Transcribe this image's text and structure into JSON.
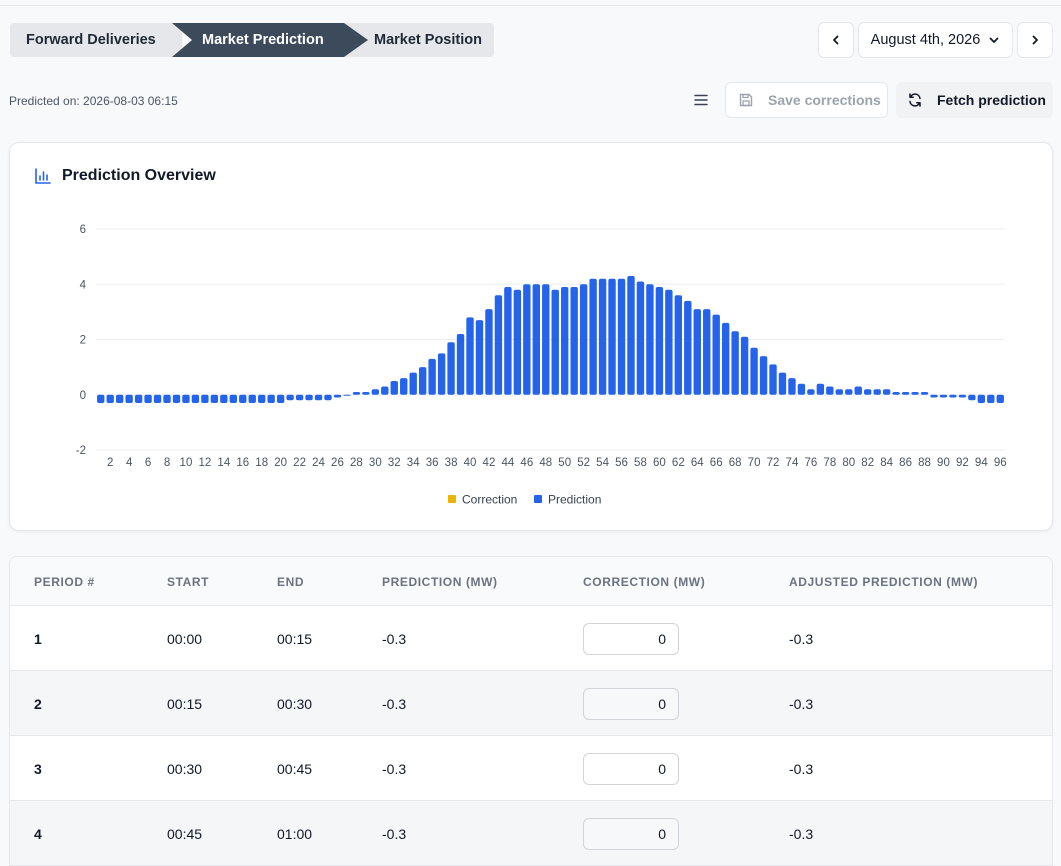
{
  "steps": [
    {
      "label": "Forward Deliveries"
    },
    {
      "label": "Market Prediction"
    },
    {
      "label": "Market Position"
    }
  ],
  "date_picker": {
    "value": "August 4th, 2026",
    "prev_icon": "chevron-left-icon",
    "next_icon": "chevron-right-icon"
  },
  "predicted_on": "Predicted on: 2026-08-03 06:15",
  "toolbar": {
    "menu_icon": "menu-icon",
    "save_label": "Save corrections",
    "fetch_label": "Fetch prediction"
  },
  "chart_card": {
    "title": "Prediction Overview",
    "icon": "bar-chart-icon"
  },
  "colors": {
    "prediction": "#2563eb",
    "correction": "#eab308",
    "active_step": "#3d4a5c"
  },
  "chart_data": {
    "type": "bar",
    "x": [
      1,
      2,
      3,
      4,
      5,
      6,
      7,
      8,
      9,
      10,
      11,
      12,
      13,
      14,
      15,
      16,
      17,
      18,
      19,
      20,
      21,
      22,
      23,
      24,
      25,
      26,
      27,
      28,
      29,
      30,
      31,
      32,
      33,
      34,
      35,
      36,
      37,
      38,
      39,
      40,
      41,
      42,
      43,
      44,
      45,
      46,
      47,
      48,
      49,
      50,
      51,
      52,
      53,
      54,
      55,
      56,
      57,
      58,
      59,
      60,
      61,
      62,
      63,
      64,
      65,
      66,
      67,
      68,
      69,
      70,
      71,
      72,
      73,
      74,
      75,
      76,
      77,
      78,
      79,
      80,
      81,
      82,
      83,
      84,
      85,
      86,
      87,
      88,
      89,
      90,
      91,
      92,
      93,
      94,
      95,
      96
    ],
    "x_ticks": [
      "2",
      "4",
      "6",
      "8",
      "10",
      "12",
      "14",
      "16",
      "18",
      "20",
      "22",
      "24",
      "26",
      "28",
      "30",
      "32",
      "34",
      "36",
      "38",
      "40",
      "42",
      "44",
      "46",
      "48",
      "50",
      "52",
      "54",
      "56",
      "58",
      "60",
      "62",
      "64",
      "66",
      "68",
      "70",
      "72",
      "74",
      "76",
      "78",
      "80",
      "82",
      "84",
      "86",
      "88",
      "90",
      "92",
      "94",
      "96"
    ],
    "ylim": [
      -2,
      6
    ],
    "y_ticks": [
      "6",
      "4",
      "2",
      "0",
      "-2"
    ],
    "grid": true,
    "legend_position": "bottom-center",
    "series": [
      {
        "name": "Correction",
        "values": [
          0,
          0,
          0,
          0,
          0,
          0,
          0,
          0,
          0,
          0,
          0,
          0,
          0,
          0,
          0,
          0,
          0,
          0,
          0,
          0,
          0,
          0,
          0,
          0,
          0,
          0,
          0,
          0,
          0,
          0,
          0,
          0,
          0,
          0,
          0,
          0,
          0,
          0,
          0,
          0,
          0,
          0,
          0,
          0,
          0,
          0,
          0,
          0,
          0,
          0,
          0,
          0,
          0,
          0,
          0,
          0,
          0,
          0,
          0,
          0,
          0,
          0,
          0,
          0,
          0,
          0,
          0,
          0,
          0,
          0,
          0,
          0,
          0,
          0,
          0,
          0,
          0,
          0,
          0,
          0,
          0,
          0,
          0,
          0,
          0,
          0,
          0,
          0,
          0,
          0,
          0,
          0,
          0,
          0,
          0,
          0
        ]
      },
      {
        "name": "Prediction",
        "values": [
          -0.3,
          -0.3,
          -0.3,
          -0.3,
          -0.3,
          -0.3,
          -0.3,
          -0.3,
          -0.3,
          -0.3,
          -0.3,
          -0.3,
          -0.3,
          -0.3,
          -0.3,
          -0.3,
          -0.3,
          -0.3,
          -0.3,
          -0.3,
          -0.2,
          -0.2,
          -0.2,
          -0.2,
          -0.2,
          -0.1,
          0,
          0.1,
          0.1,
          0.2,
          0.3,
          0.5,
          0.6,
          0.8,
          1.0,
          1.3,
          1.5,
          1.9,
          2.2,
          2.8,
          2.7,
          3.1,
          3.6,
          3.9,
          3.8,
          4.0,
          4.0,
          4.0,
          3.8,
          3.9,
          3.9,
          4.0,
          4.2,
          4.2,
          4.2,
          4.2,
          4.3,
          4.1,
          4.0,
          3.9,
          3.8,
          3.6,
          3.4,
          3.1,
          3.1,
          2.9,
          2.6,
          2.3,
          2.1,
          1.7,
          1.4,
          1.1,
          0.8,
          0.6,
          0.4,
          0.2,
          0.4,
          0.3,
          0.2,
          0.2,
          0.3,
          0.2,
          0.2,
          0.2,
          0.1,
          0.1,
          0.1,
          0.1,
          -0.1,
          -0.1,
          -0.1,
          -0.1,
          -0.2,
          -0.3,
          -0.3,
          -0.3
        ]
      }
    ]
  },
  "table": {
    "headers": [
      "PERIOD #",
      "START",
      "END",
      "PREDICTION (MW)",
      "CORRECTION (MW)",
      "ADJUSTED PREDICTION (MW)"
    ],
    "rows": [
      {
        "period": "1",
        "start": "00:00",
        "end": "00:15",
        "prediction": "-0.3",
        "correction": "0",
        "adjusted": "-0.3"
      },
      {
        "period": "2",
        "start": "00:15",
        "end": "00:30",
        "prediction": "-0.3",
        "correction": "0",
        "adjusted": "-0.3"
      },
      {
        "period": "3",
        "start": "00:30",
        "end": "00:45",
        "prediction": "-0.3",
        "correction": "0",
        "adjusted": "-0.3"
      },
      {
        "period": "4",
        "start": "00:45",
        "end": "01:00",
        "prediction": "-0.3",
        "correction": "0",
        "adjusted": "-0.3"
      }
    ]
  }
}
